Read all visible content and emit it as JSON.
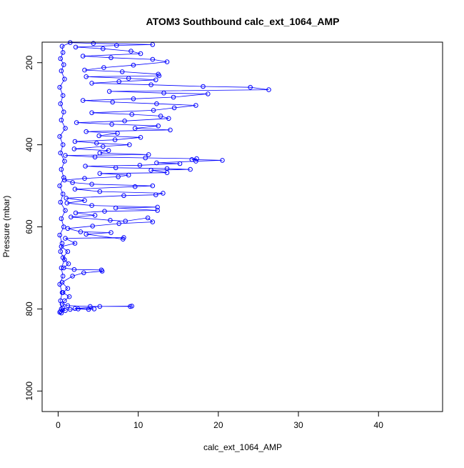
{
  "chart_data": {
    "type": "scatter",
    "title": "ATOM3 Southbound calc_ext_1064_AMP",
    "xlabel": "calc_ext_1064_AMP",
    "ylabel": "Pressure (mbar)",
    "xlim": [
      -2,
      48
    ],
    "ylim": [
      1050,
      150
    ],
    "y_reversed": true,
    "x_ticks": [
      0,
      10,
      20,
      30,
      40
    ],
    "y_ticks": [
      200,
      400,
      600,
      800,
      1000
    ],
    "grid": false,
    "legend": "none",
    "marker": "open-circle",
    "connected": true,
    "series": [
      {
        "color": "#0000ff",
        "points": [
          [
            0.2,
            808
          ],
          [
            0.3,
            806
          ],
          [
            0.9,
            804
          ],
          [
            0.4,
            800
          ],
          [
            0.6,
            798
          ],
          [
            1.5,
            801
          ],
          [
            2.5,
            800
          ],
          [
            3.8,
            801
          ],
          [
            4.5,
            800
          ],
          [
            2.1,
            799
          ],
          [
            5.2,
            794
          ],
          [
            9.2,
            793
          ],
          [
            9.0,
            794
          ],
          [
            4.0,
            794
          ],
          [
            1.2,
            792
          ],
          [
            0.5,
            788
          ],
          [
            0.8,
            780
          ],
          [
            1.4,
            770
          ],
          [
            0.6,
            760
          ],
          [
            1.2,
            750
          ],
          [
            0.5,
            735
          ],
          [
            1.8,
            720
          ],
          [
            3.2,
            712
          ],
          [
            5.5,
            708
          ],
          [
            5.4,
            705
          ],
          [
            2.0,
            704
          ],
          [
            0.7,
            700
          ],
          [
            1.3,
            690
          ],
          [
            0.6,
            675
          ],
          [
            1.2,
            660
          ],
          [
            0.4,
            648
          ],
          [
            2.1,
            640
          ],
          [
            0.9,
            628
          ],
          [
            8.2,
            626
          ],
          [
            8.1,
            630
          ],
          [
            3.5,
            618
          ],
          [
            6.6,
            614
          ],
          [
            2.8,
            612
          ],
          [
            1.2,
            604
          ],
          [
            4.3,
            598
          ],
          [
            7.6,
            592
          ],
          [
            11.8,
            588
          ],
          [
            11.2,
            578
          ],
          [
            8.4,
            586
          ],
          [
            6.5,
            584
          ],
          [
            1.6,
            576
          ],
          [
            4.6,
            572
          ],
          [
            2.2,
            566
          ],
          [
            5.8,
            562
          ],
          [
            12.4,
            560
          ],
          [
            7.2,
            554
          ],
          [
            12.4,
            552
          ],
          [
            4.2,
            548
          ],
          [
            1.1,
            542
          ],
          [
            3.3,
            536
          ],
          [
            1.0,
            530
          ],
          [
            8.2,
            524
          ],
          [
            12.2,
            522
          ],
          [
            13.1,
            518
          ],
          [
            5.2,
            514
          ],
          [
            2.1,
            508
          ],
          [
            9.6,
            502
          ],
          [
            11.8,
            500
          ],
          [
            4.2,
            496
          ],
          [
            1.8,
            492
          ],
          [
            0.8,
            486
          ],
          [
            3.3,
            482
          ],
          [
            7.5,
            478
          ],
          [
            8.8,
            474
          ],
          [
            5.2,
            470
          ],
          [
            13.6,
            468
          ],
          [
            11.6,
            462
          ],
          [
            16.5,
            460
          ],
          [
            13.6,
            458
          ],
          [
            7.2,
            456
          ],
          [
            3.4,
            452
          ],
          [
            10.2,
            450
          ],
          [
            15.2,
            446
          ],
          [
            12.3,
            444
          ],
          [
            17.2,
            440
          ],
          [
            20.5,
            438
          ],
          [
            16.7,
            436
          ],
          [
            17.3,
            434
          ],
          [
            10.9,
            432
          ],
          [
            4.6,
            430
          ],
          [
            0.9,
            426
          ],
          [
            11.3,
            424
          ],
          [
            5.2,
            420
          ],
          [
            6.3,
            414
          ],
          [
            2.0,
            410
          ],
          [
            5.6,
            404
          ],
          [
            8.9,
            400
          ],
          [
            4.8,
            396
          ],
          [
            2.1,
            392
          ],
          [
            7.1,
            388
          ],
          [
            10.3,
            382
          ],
          [
            5.1,
            378
          ],
          [
            7.4,
            372
          ],
          [
            3.5,
            368
          ],
          [
            14.0,
            364
          ],
          [
            9.6,
            360
          ],
          [
            12.5,
            354
          ],
          [
            6.7,
            350
          ],
          [
            2.3,
            346
          ],
          [
            8.3,
            342
          ],
          [
            13.8,
            336
          ],
          [
            12.8,
            330
          ],
          [
            9.2,
            326
          ],
          [
            4.2,
            322
          ],
          [
            11.9,
            316
          ],
          [
            14.5,
            310
          ],
          [
            17.2,
            304
          ],
          [
            12.3,
            300
          ],
          [
            6.8,
            296
          ],
          [
            3.1,
            292
          ],
          [
            9.4,
            288
          ],
          [
            14.4,
            284
          ],
          [
            18.7,
            276
          ],
          [
            13.2,
            274
          ],
          [
            6.4,
            270
          ],
          [
            26.3,
            266
          ],
          [
            24.0,
            260
          ],
          [
            18.1,
            258
          ],
          [
            11.6,
            254
          ],
          [
            4.2,
            250
          ],
          [
            7.6,
            246
          ],
          [
            12.2,
            242
          ],
          [
            8.8,
            238
          ],
          [
            3.5,
            234
          ],
          [
            12.6,
            232
          ],
          [
            12.5,
            228
          ],
          [
            8.0,
            222
          ],
          [
            3.3,
            218
          ],
          [
            5.7,
            212
          ],
          [
            9.4,
            206
          ],
          [
            13.6,
            198
          ],
          [
            11.8,
            192
          ],
          [
            6.6,
            188
          ],
          [
            3.1,
            184
          ],
          [
            10.3,
            178
          ],
          [
            9.1,
            172
          ],
          [
            5.6,
            166
          ],
          [
            2.2,
            162
          ],
          [
            7.3,
            158
          ],
          [
            11.8,
            156
          ],
          [
            4.4,
            153
          ],
          [
            1.5,
            151
          ],
          [
            0.5,
            160
          ],
          [
            0.6,
            175
          ],
          [
            0.3,
            190
          ],
          [
            0.7,
            205
          ],
          [
            0.4,
            220
          ],
          [
            0.8,
            240
          ],
          [
            0.2,
            260
          ],
          [
            0.6,
            280
          ],
          [
            0.3,
            300
          ],
          [
            0.7,
            320
          ],
          [
            0.4,
            340
          ],
          [
            0.9,
            360
          ],
          [
            0.2,
            380
          ],
          [
            0.6,
            400
          ],
          [
            0.3,
            420
          ],
          [
            0.8,
            440
          ],
          [
            0.4,
            460
          ],
          [
            0.7,
            480
          ],
          [
            0.2,
            500
          ],
          [
            0.6,
            520
          ],
          [
            0.3,
            540
          ],
          [
            0.9,
            560
          ],
          [
            0.4,
            580
          ],
          [
            0.7,
            600
          ],
          [
            0.2,
            620
          ],
          [
            0.5,
            640
          ],
          [
            0.3,
            660
          ],
          [
            0.8,
            680
          ],
          [
            0.4,
            700
          ],
          [
            0.6,
            720
          ],
          [
            0.2,
            740
          ],
          [
            0.5,
            760
          ],
          [
            0.3,
            780
          ],
          [
            0.4,
            810
          ]
        ]
      }
    ]
  }
}
